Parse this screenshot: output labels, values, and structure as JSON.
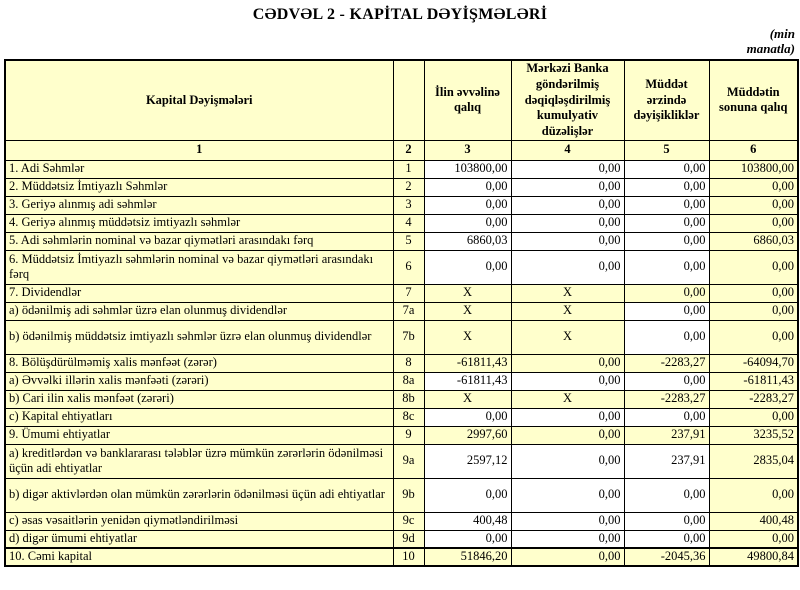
{
  "page": {
    "title": "CƏDVƏL  2 - KAPİTAL DƏYİŞMƏLƏRİ",
    "unit_note_line1": "(min",
    "unit_note_line2": "manatla)"
  },
  "colors": {
    "cell_yellow": "#FFFFCC",
    "cell_white": "#FFFFFF",
    "border": "#000000"
  },
  "table": {
    "header": {
      "label": "Kapital Dəyişmələri",
      "empty_col": "",
      "columns": [
        "İlin əvvəlinə qalıq",
        "Mərkəzi Banka göndərilmiş dəqiqləşdirilmiş kumulyativ düzəlişlər",
        "Müddət ərzində dəyişikliklər",
        "Müddətin sonuna qalıq"
      ]
    },
    "column_numbers": [
      "1",
      "2",
      "3",
      "4",
      "5",
      "6"
    ],
    "rows": [
      {
        "label": "1. Adi Səhmlər",
        "num": "1",
        "values": [
          "103800,00",
          "0,00",
          "0,00",
          "103800,00"
        ],
        "shaded": [
          false,
          false,
          false,
          true
        ],
        "tall": false,
        "thick_top": false
      },
      {
        "label": "2. Müddətsiz İmtiyazlı Səhmlər",
        "num": "2",
        "values": [
          "0,00",
          "0,00",
          "0,00",
          "0,00"
        ],
        "shaded": [
          false,
          false,
          false,
          true
        ],
        "tall": false,
        "thick_top": false
      },
      {
        "label": "3. Geriyə alınmış adi səhmlər",
        "num": "3",
        "values": [
          "0,00",
          "0,00",
          "0,00",
          "0,00"
        ],
        "shaded": [
          false,
          false,
          false,
          true
        ],
        "tall": false,
        "thick_top": false
      },
      {
        "label": "4. Geriyə alınmış müddətsiz imtiyazlı səhmlər",
        "num": "4",
        "values": [
          "0,00",
          "0,00",
          "0,00",
          "0,00"
        ],
        "shaded": [
          false,
          false,
          false,
          true
        ],
        "tall": false,
        "thick_top": false
      },
      {
        "label": "5. Adi səhmlərin nominal və bazar qiymətləri arasındakı fərq",
        "num": "5",
        "values": [
          "6860,03",
          "0,00",
          "0,00",
          "6860,03"
        ],
        "shaded": [
          false,
          false,
          false,
          true
        ],
        "tall": false,
        "thick_top": false
      },
      {
        "label": "6. Müddətsiz İmtiyazlı səhmlərin nominal və bazar qiymətləri arasındakı fərq",
        "num": "6",
        "values": [
          "0,00",
          "0,00",
          "0,00",
          "0,00"
        ],
        "shaded": [
          false,
          false,
          false,
          true
        ],
        "tall": true,
        "thick_top": false
      },
      {
        "label": "7. Dividendlər",
        "num": "7",
        "values": [
          "X",
          "X",
          "0,00",
          "0,00"
        ],
        "shaded": [
          true,
          true,
          true,
          true
        ],
        "tall": false,
        "thick_top": false
      },
      {
        "label": "a) ödənilmiş adi səhmlər üzrə elan olunmuş dividendlər",
        "num": "7a",
        "values": [
          "X",
          "X",
          "0,00",
          "0,00"
        ],
        "shaded": [
          true,
          true,
          false,
          true
        ],
        "tall": false,
        "thick_top": false
      },
      {
        "label": "b) ödənilmiş müddətsiz imtiyazlı səhmlər üzrə elan olunmuş dividendlər",
        "num": "7b",
        "values": [
          "X",
          "X",
          "0,00",
          "0,00"
        ],
        "shaded": [
          true,
          true,
          false,
          true
        ],
        "tall": true,
        "thick_top": false
      },
      {
        "label": "8. Bölüşdürülməmiş xalis mənfəət (zərər)",
        "num": "8",
        "values": [
          "-61811,43",
          "0,00",
          "-2283,27",
          "-64094,70"
        ],
        "shaded": [
          true,
          true,
          true,
          true
        ],
        "tall": false,
        "thick_top": false
      },
      {
        "label": "a) Əvvəlki illərin xalis mənfəəti (zərəri)",
        "num": "8a",
        "values": [
          "-61811,43",
          "0,00",
          "0,00",
          "-61811,43"
        ],
        "shaded": [
          false,
          false,
          false,
          true
        ],
        "tall": false,
        "thick_top": false
      },
      {
        "label": "b) Cari ilin xalis mənfəət (zərəri)",
        "num": "8b",
        "values": [
          "X",
          "X",
          "-2283,27",
          "-2283,27"
        ],
        "shaded": [
          true,
          true,
          true,
          true
        ],
        "tall": false,
        "thick_top": false
      },
      {
        "label": "c) Kapital ehtiyatları",
        "num": "8c",
        "values": [
          "0,00",
          "0,00",
          "0,00",
          "0,00"
        ],
        "shaded": [
          false,
          false,
          false,
          true
        ],
        "tall": false,
        "thick_top": false
      },
      {
        "label": "9. Ümumi ehtiyatlar",
        "num": "9",
        "values": [
          "2997,60",
          "0,00",
          "237,91",
          "3235,52"
        ],
        "shaded": [
          true,
          true,
          true,
          true
        ],
        "tall": false,
        "thick_top": false
      },
      {
        "label": "a) kreditlərdən və banklararası  tələblər üzrə mümkün zərərlərin ödənilməsi üçün adi ehtiyatlar",
        "num": "9a",
        "values": [
          "2597,12",
          "0,00",
          "237,91",
          "2835,04"
        ],
        "shaded": [
          false,
          false,
          false,
          true
        ],
        "tall": true,
        "thick_top": false
      },
      {
        "label": "b) digər aktivlərdən olan mümkün zərərlərin ödənilməsi üçün adi ehtiyatlar",
        "num": "9b",
        "values": [
          "0,00",
          "0,00",
          "0,00",
          "0,00"
        ],
        "shaded": [
          false,
          false,
          false,
          true
        ],
        "tall": true,
        "thick_top": false
      },
      {
        "label": "c) əsas vəsaitlərin yenidən qiymətləndirilməsi",
        "num": "9c",
        "values": [
          "400,48",
          "0,00",
          "0,00",
          "400,48"
        ],
        "shaded": [
          false,
          false,
          false,
          true
        ],
        "tall": false,
        "thick_top": false
      },
      {
        "label": "d) digər ümumi ehtiyatlar",
        "num": "9d",
        "values": [
          "0,00",
          "0,00",
          "0,00",
          "0,00"
        ],
        "shaded": [
          false,
          false,
          false,
          true
        ],
        "tall": false,
        "thick_top": false
      },
      {
        "label": "10. Cəmi kapital",
        "num": "10",
        "values": [
          "51846,20",
          "0,00",
          "-2045,36",
          "49800,84"
        ],
        "shaded": [
          true,
          true,
          true,
          true
        ],
        "tall": false,
        "thick_top": true
      }
    ]
  }
}
